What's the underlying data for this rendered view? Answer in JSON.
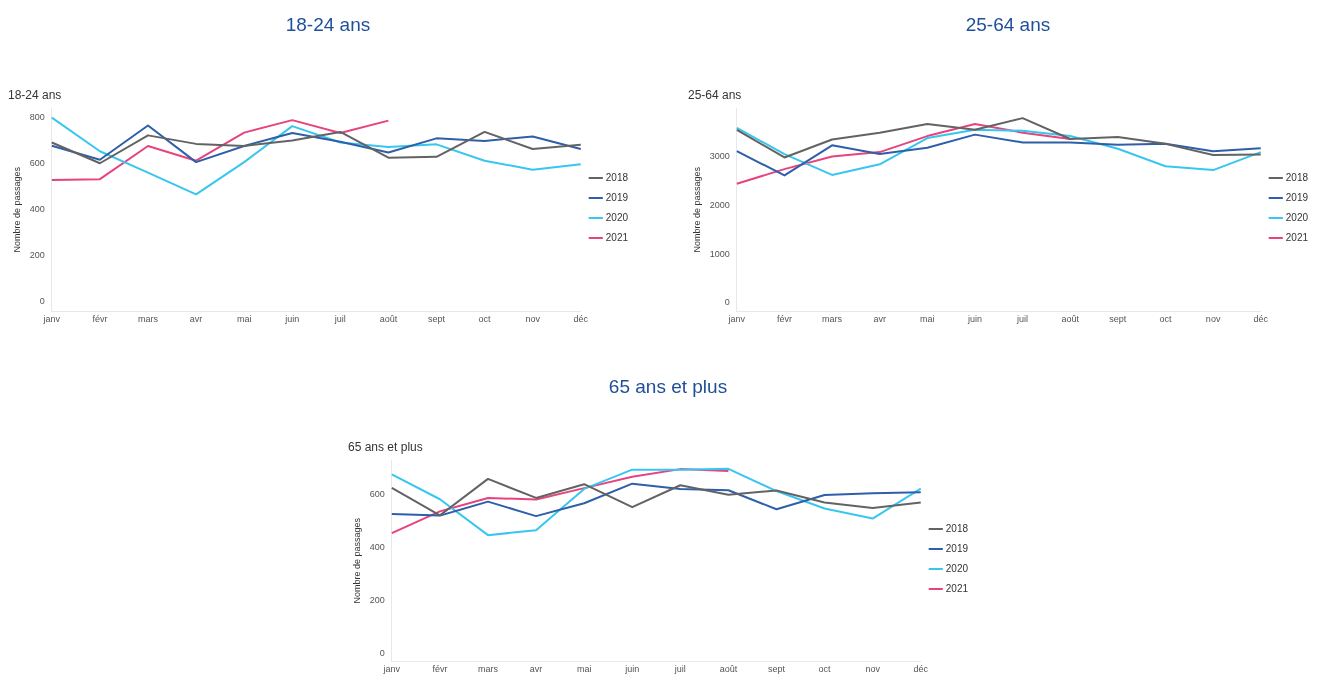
{
  "chart_data": [
    {
      "type": "line",
      "title": "18-24 ans",
      "subtitle": "18-24 ans",
      "ylabel": "Nombre de passages",
      "categories": [
        "janv",
        "févr",
        "mars",
        "avr",
        "mai",
        "juin",
        "juil",
        "août",
        "sept",
        "oct",
        "nov",
        "déc"
      ],
      "series": [
        {
          "name": "2018",
          "color": "#636363",
          "values": [
            692,
            602,
            723,
            686,
            677,
            701,
            738,
            626,
            630,
            738,
            664,
            682
          ]
        },
        {
          "name": "2019",
          "color": "#2e5fa8",
          "values": [
            678,
            617,
            766,
            607,
            677,
            733,
            695,
            649,
            710,
            699,
            718,
            664
          ]
        },
        {
          "name": "2020",
          "color": "#38c6f0",
          "values": [
            800,
            654,
            561,
            467,
            607,
            763,
            692,
            673,
            684,
            613,
            574,
            598
          ]
        },
        {
          "name": "2021",
          "color": "#e6447f",
          "values": [
            529,
            533,
            677,
            613,
            735,
            789,
            733,
            787,
            null,
            null,
            null,
            null
          ]
        }
      ],
      "ylim": [
        -40,
        840
      ],
      "yticks": [
        0,
        200,
        400,
        600,
        800
      ],
      "grid": false,
      "legend": "right",
      "marker": "none"
    },
    {
      "type": "line",
      "title": "25-64 ans",
      "subtitle": "25-64 ans",
      "ylabel": "Nombre de passages",
      "categories": [
        "janv",
        "févr",
        "mars",
        "avr",
        "mai",
        "juin",
        "juil",
        "août",
        "sept",
        "oct",
        "nov",
        "déc"
      ],
      "series": [
        {
          "name": "2018",
          "color": "#636363",
          "values": [
            3560,
            2990,
            3360,
            3500,
            3680,
            3560,
            3800,
            3370,
            3410,
            3270,
            3040,
            3050
          ]
        },
        {
          "name": "2019",
          "color": "#2e5fa8",
          "values": [
            3120,
            2620,
            3240,
            3060,
            3190,
            3460,
            3300,
            3300,
            3250,
            3270,
            3120,
            3180
          ]
        },
        {
          "name": "2020",
          "color": "#38c6f0",
          "values": [
            3600,
            3060,
            2630,
            2850,
            3390,
            3560,
            3540,
            3430,
            3170,
            2810,
            2730,
            3100
          ]
        },
        {
          "name": "2021",
          "color": "#e6447f",
          "values": [
            2450,
            2750,
            3010,
            3100,
            3430,
            3680,
            3500,
            3370,
            null,
            null,
            null,
            null
          ]
        }
      ],
      "ylim": [
        -175,
        4000
      ],
      "yticks": [
        0,
        1000,
        2000,
        3000
      ],
      "grid": false,
      "legend": "right",
      "marker": "none"
    },
    {
      "type": "line",
      "title": "65 ans et plus",
      "subtitle": "65 ans et plus",
      "ylabel": "Nombre de passages",
      "categories": [
        "janv",
        "févr",
        "mars",
        "avr",
        "mai",
        "juin",
        "juil",
        "août",
        "sept",
        "oct",
        "nov",
        "déc"
      ],
      "series": [
        {
          "name": "2018",
          "color": "#636363",
          "values": [
            626,
            522,
            660,
            588,
            640,
            553,
            636,
            600,
            616,
            571,
            550,
            571
          ]
        },
        {
          "name": "2019",
          "color": "#2e5fa8",
          "values": [
            527,
            521,
            574,
            519,
            568,
            642,
            622,
            617,
            545,
            599,
            606,
            609
          ]
        },
        {
          "name": "2020",
          "color": "#38c6f0",
          "values": [
            677,
            583,
            447,
            466,
            622,
            695,
            695,
            698,
            614,
            548,
            510,
            623
          ]
        },
        {
          "name": "2021",
          "color": "#e6447f",
          "values": [
            455,
            537,
            588,
            582,
            625,
            668,
            697,
            690,
            null,
            null,
            null,
            null
          ]
        }
      ],
      "ylim": [
        -30,
        730
      ],
      "yticks": [
        0,
        200,
        400,
        600
      ],
      "grid": false,
      "legend": "right",
      "marker": "none"
    }
  ]
}
